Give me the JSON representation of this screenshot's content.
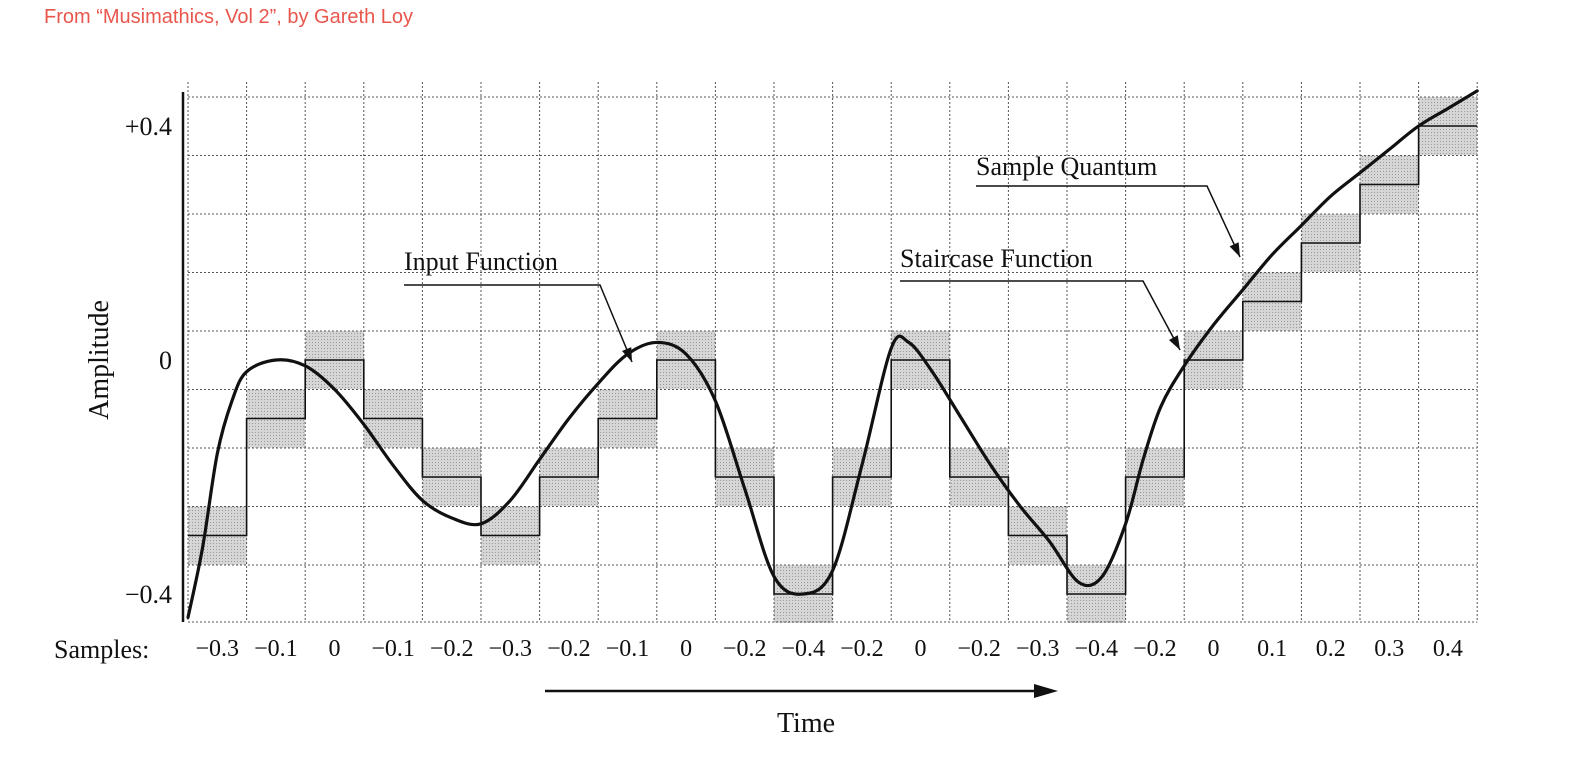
{
  "credit": "From “Musimathics, Vol 2”, by Gareth Loy",
  "chart_data": {
    "type": "line",
    "ylabel": "Amplitude",
    "xlabel": "Time",
    "y_ticks": [
      {
        "value": 0.4,
        "label": "+0.4"
      },
      {
        "value": 0,
        "label": "0"
      },
      {
        "value": -0.4,
        "label": "−0.4"
      }
    ],
    "ylim": [
      -0.45,
      0.45
    ],
    "samples_label": "Samples:",
    "samples": [
      -0.3,
      -0.1,
      0,
      -0.1,
      -0.2,
      -0.3,
      -0.2,
      -0.1,
      0,
      -0.2,
      -0.4,
      -0.2,
      0,
      -0.2,
      -0.3,
      -0.4,
      -0.2,
      0,
      0.1,
      0.2,
      0.3,
      0.4
    ],
    "sample_labels": [
      "−0.3",
      "−0.1",
      "0",
      "−0.1",
      "−0.2",
      "−0.3",
      "−0.2",
      "−0.1",
      "0",
      "−0.2",
      "−0.4",
      "−0.2",
      "0",
      "−0.2",
      "−0.3",
      "−0.4",
      "−0.2",
      "0",
      "0.1",
      "0.2",
      "0.3",
      "0.4"
    ],
    "input_function": [
      [
        0.0,
        -0.44
      ],
      [
        0.25,
        -0.32
      ],
      [
        0.5,
        -0.16
      ],
      [
        0.75,
        -0.07
      ],
      [
        1.0,
        -0.02
      ],
      [
        1.5,
        0.0
      ],
      [
        2.0,
        -0.01
      ],
      [
        2.5,
        -0.05
      ],
      [
        3.0,
        -0.11
      ],
      [
        3.5,
        -0.18
      ],
      [
        4.0,
        -0.24
      ],
      [
        4.5,
        -0.27
      ],
      [
        5.0,
        -0.28
      ],
      [
        5.5,
        -0.24
      ],
      [
        6.0,
        -0.17
      ],
      [
        6.5,
        -0.1
      ],
      [
        7.0,
        -0.04
      ],
      [
        7.5,
        0.01
      ],
      [
        8.0,
        0.03
      ],
      [
        8.5,
        0.01
      ],
      [
        9.0,
        -0.07
      ],
      [
        9.5,
        -0.22
      ],
      [
        10.0,
        -0.37
      ],
      [
        10.5,
        -0.4
      ],
      [
        11.0,
        -0.36
      ],
      [
        11.5,
        -0.18
      ],
      [
        12.0,
        0.02
      ],
      [
        12.3,
        0.03
      ],
      [
        12.7,
        -0.02
      ],
      [
        13.2,
        -0.1
      ],
      [
        13.7,
        -0.18
      ],
      [
        14.2,
        -0.25
      ],
      [
        14.7,
        -0.31
      ],
      [
        15.2,
        -0.38
      ],
      [
        15.6,
        -0.37
      ],
      [
        16.0,
        -0.28
      ],
      [
        16.3,
        -0.17
      ],
      [
        16.6,
        -0.08
      ],
      [
        17.0,
        -0.01
      ],
      [
        17.5,
        0.06
      ],
      [
        18.0,
        0.12
      ],
      [
        18.5,
        0.18
      ],
      [
        19.0,
        0.23
      ],
      [
        19.5,
        0.28
      ],
      [
        20.0,
        0.32
      ],
      [
        20.5,
        0.36
      ],
      [
        21.0,
        0.4
      ],
      [
        21.5,
        0.43
      ],
      [
        22.0,
        0.46
      ]
    ],
    "annotations": [
      {
        "text": "Input Function"
      },
      {
        "text": "Staircase Function"
      },
      {
        "text": "Sample Quantum"
      }
    ]
  }
}
